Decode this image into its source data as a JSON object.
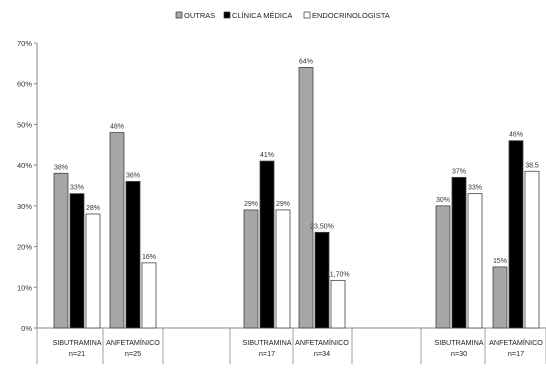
{
  "chart_data": {
    "type": "bar",
    "ylim": [
      0,
      70
    ],
    "y_ticks": [
      "0%",
      "10%",
      "20%",
      "30%",
      "40%",
      "50%",
      "60%",
      "70%"
    ],
    "grid": false,
    "legend_position": "top-center",
    "series": [
      {
        "name": "OUTRAS",
        "color": "#a6a6a6"
      },
      {
        "name": "CLÍNICA MÉDICA",
        "color": "#000000"
      },
      {
        "name": "ENDOCRINOLOGISTA",
        "color": "#ffffff"
      }
    ],
    "groups": [
      {
        "categories": [
          {
            "label": "SIBUTRAMINA",
            "n": "n=21",
            "values": [
              38,
              33,
              28
            ],
            "labels": [
              "38%",
              "33%",
              "28%"
            ]
          },
          {
            "label": "ANFETAMÍNICO",
            "n": "n=25",
            "values": [
              48,
              36,
              16
            ],
            "labels": [
              "48%",
              "36%",
              "16%"
            ]
          }
        ]
      },
      {
        "categories": [
          {
            "label": "SIBUTRAMINA",
            "n": "n=17",
            "values": [
              29,
              41,
              29
            ],
            "labels": [
              "29%",
              "41%",
              "29%"
            ]
          },
          {
            "label": "ANFETAMÍNICO",
            "n": "n=34",
            "values": [
              64,
              23.5,
              11.7
            ],
            "labels": [
              "64%",
              "23,50%",
              "11,70%"
            ]
          }
        ]
      },
      {
        "categories": [
          {
            "label": "SIBUTRAMINA",
            "n": "n=30",
            "values": [
              30,
              37,
              33
            ],
            "labels": [
              "30%",
              "37%",
              "33%"
            ]
          },
          {
            "label": "ANFETAMÍNICO",
            "n": "n=17",
            "values": [
              15,
              46,
              38.5
            ],
            "labels": [
              "15%",
              "46%",
              "38,5"
            ]
          }
        ]
      }
    ]
  }
}
